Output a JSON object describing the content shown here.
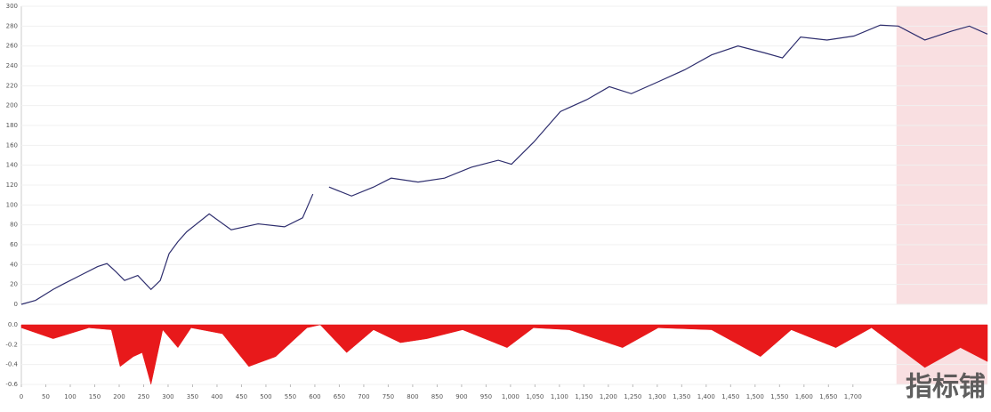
{
  "chart_data": [
    {
      "type": "line",
      "color": "#2e2e6e",
      "x": [
        0,
        29,
        65,
        84,
        120,
        156,
        175,
        193,
        211,
        238,
        265,
        284,
        302,
        320,
        338,
        384,
        429,
        484,
        538,
        575,
        596,
        612,
        629,
        675,
        720,
        756,
        811,
        865,
        920,
        975,
        1002,
        1047,
        1102,
        1156,
        1202,
        1247,
        1302,
        1356,
        1411,
        1465,
        1520,
        1556,
        1593,
        1647,
        1702,
        1756,
        1793,
        1847,
        1902,
        1938,
        1975
      ],
      "values": [
        0,
        4,
        15,
        20,
        29,
        38,
        41,
        33,
        24,
        29,
        15,
        24,
        51,
        63,
        73,
        91,
        75,
        81,
        78,
        87,
        111,
        null,
        118,
        109,
        118,
        127,
        123,
        127,
        138,
        145,
        141,
        163,
        194,
        206,
        219,
        212,
        224,
        236,
        251,
        260,
        253,
        248,
        269,
        266,
        270,
        281,
        280,
        266,
        275,
        280,
        272
      ],
      "xlim": [
        0,
        1975
      ],
      "ylim": [
        0,
        300
      ],
      "yticks": [
        0,
        20,
        40,
        60,
        80,
        100,
        120,
        140,
        160,
        180,
        200,
        220,
        240,
        260,
        280,
        300
      ],
      "highlight": [
        1789,
        1975
      ],
      "highlight_color": "#f8d7da"
    },
    {
      "type": "area",
      "color": "#e8191b",
      "x": [
        0,
        65,
        138,
        184,
        202,
        229,
        247,
        265,
        289,
        320,
        347,
        411,
        465,
        520,
        584,
        611,
        665,
        720,
        775,
        829,
        902,
        993,
        1047,
        1120,
        1229,
        1302,
        1411,
        1511,
        1574,
        1665,
        1738,
        1847,
        1920,
        1975
      ],
      "values": [
        -0.03,
        -0.14,
        -0.03,
        -0.05,
        -0.42,
        -0.32,
        -0.28,
        -0.6,
        -0.05,
        -0.23,
        -0.03,
        -0.09,
        -0.42,
        -0.32,
        -0.03,
        0,
        -0.28,
        -0.05,
        -0.18,
        -0.14,
        -0.05,
        -0.23,
        -0.03,
        -0.05,
        -0.23,
        -0.03,
        -0.05,
        -0.32,
        -0.05,
        -0.23,
        -0.03,
        -0.43,
        -0.23,
        -0.37
      ],
      "xlim": [
        0,
        1975
      ],
      "ylim": [
        -0.6,
        0
      ],
      "yticks": [
        {
          "value": 0,
          "label": "0.0"
        },
        -0.2,
        -0.4,
        -0.6
      ],
      "xticks": [
        0,
        50,
        100,
        150,
        200,
        250,
        300,
        350,
        400,
        450,
        500,
        550,
        600,
        650,
        700,
        750,
        800,
        850,
        900,
        950,
        {
          "value": 1000,
          "label": "1,000"
        },
        {
          "value": 1050,
          "label": "1,050"
        },
        {
          "value": 1100,
          "label": "1,100"
        },
        {
          "value": 1150,
          "label": "1,150"
        },
        {
          "value": 1200,
          "label": "1,200"
        },
        {
          "value": 1250,
          "label": "1,250"
        },
        {
          "value": 1300,
          "label": "1,300"
        },
        {
          "value": 1350,
          "label": "1,350"
        },
        {
          "value": 1400,
          "label": "1,400"
        },
        {
          "value": 1450,
          "label": "1,450"
        },
        {
          "value": 1500,
          "label": "1,500"
        },
        {
          "value": 1550,
          "label": "1,550"
        },
        {
          "value": 1600,
          "label": "1,600"
        },
        {
          "value": 1650,
          "label": "1,650"
        },
        {
          "value": 1700,
          "label": "1,700"
        }
      ],
      "highlight": [
        1789,
        1975
      ],
      "highlight_color": "#f8d7da"
    }
  ],
  "watermark": "指标铺"
}
